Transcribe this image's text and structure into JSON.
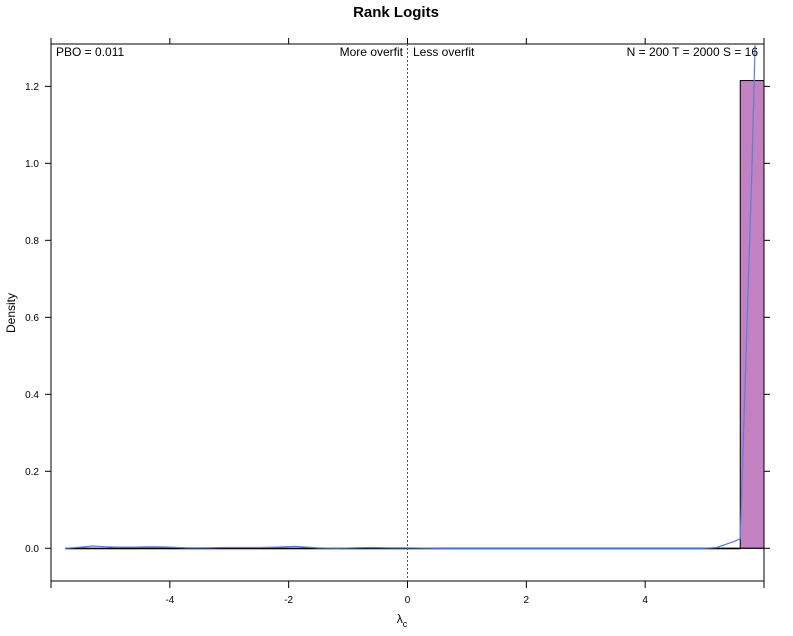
{
  "chart_data": {
    "type": "bar",
    "title": "Rank Logits",
    "xlabel": "λ",
    "xlabel_subscript": "c",
    "ylabel": "Density",
    "xlim": [
      -6.0,
      6.0
    ],
    "ylim": [
      -0.085,
      1.31
    ],
    "x_ticks": [
      -4,
      -2,
      0,
      2,
      4
    ],
    "x_tick_labels": [
      "-4",
      "-2",
      "0",
      "2",
      "4"
    ],
    "y_ticks": [
      0.0,
      0.2,
      0.4,
      0.6,
      0.8,
      1.0,
      1.2
    ],
    "y_tick_labels": [
      "0.0",
      "0.2",
      "0.4",
      "0.6",
      "0.8",
      "1.0",
      "1.2"
    ],
    "bars": [
      {
        "x_start": -5.75,
        "x_end": 5.6,
        "value": 0.0
      },
      {
        "x_start": 5.6,
        "x_end": 6.0,
        "value": 1.215
      }
    ],
    "density_curve": {
      "x": [
        -5.75,
        -5.5,
        -5.3,
        -5.1,
        -4.9,
        -4.6,
        -4.3,
        -4.0,
        -3.7,
        -3.4,
        -3.1,
        -2.8,
        -2.5,
        -2.2,
        -1.9,
        -1.7,
        -1.5,
        -1.2,
        -0.9,
        -0.6,
        -0.3,
        0.0,
        0.5,
        1.0,
        2.0,
        3.0,
        4.0,
        5.0,
        5.2,
        5.5,
        5.6,
        5.8,
        5.85
      ],
      "y": [
        0.0,
        0.003,
        0.006,
        0.004,
        0.003,
        0.003,
        0.004,
        0.003,
        0.001,
        0.001,
        0.002,
        0.002,
        0.002,
        0.003,
        0.005,
        0.003,
        0.001,
        0.0,
        0.001,
        0.002,
        0.001,
        0.001,
        0.0,
        0.0,
        0.0,
        0.0,
        0.0,
        0.0,
        0.002,
        0.018,
        0.025,
        1.0,
        1.31
      ]
    },
    "vline_x": 0,
    "annotations": {
      "pbo": "PBO = 0.011",
      "overfit": "More overfit   Less overfit",
      "params": "N = 200  T = 2000  S = 16"
    },
    "colors": {
      "bar_fill": "#c281c1",
      "bar_stroke": "#000000",
      "curve": "#5a7fd6",
      "vline": "#555555"
    },
    "grid": false
  }
}
